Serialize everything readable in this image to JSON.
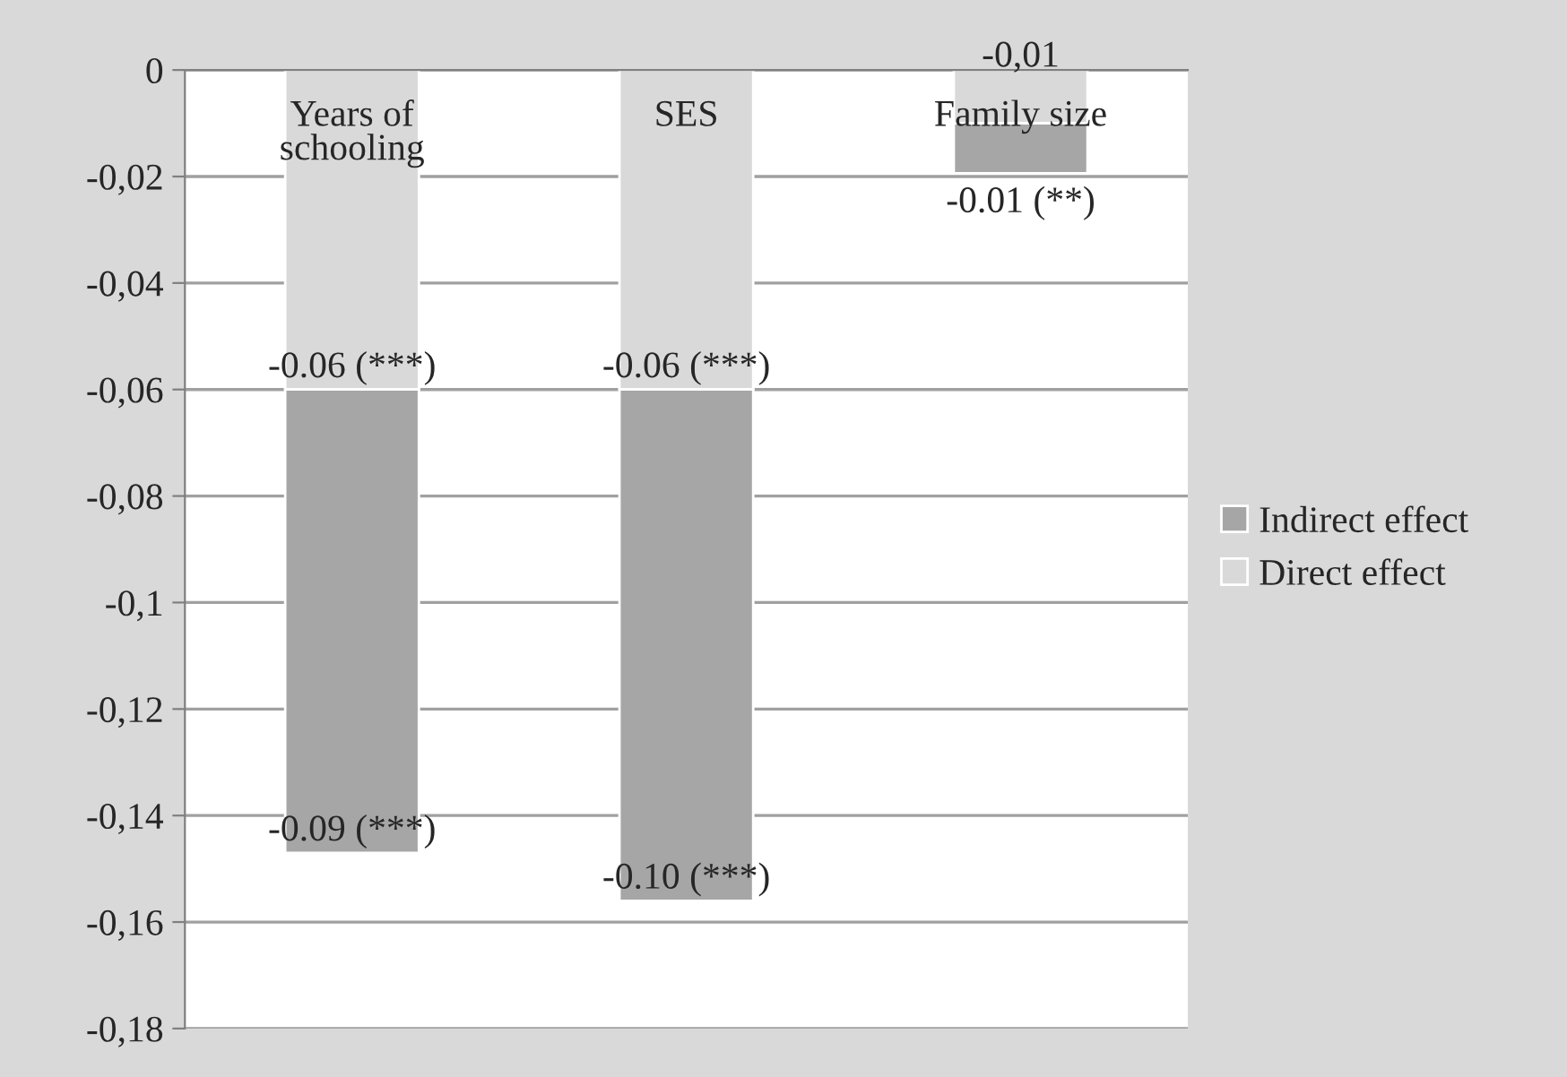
{
  "chart_data": {
    "type": "bar",
    "stacked": true,
    "categories": [
      "Years of\nschooling",
      "SES",
      "Family size"
    ],
    "series": [
      {
        "name": "Direct effect",
        "color": "#d9d9d9",
        "values": [
          -0.06,
          -0.06,
          -0.01
        ],
        "value_labels": [
          "-0.06 (***)",
          "-0.06 (***)",
          "-0,01"
        ]
      },
      {
        "name": "Indirect effect",
        "color": "#a6a6a6",
        "values": [
          -0.087,
          -0.096,
          -0.0094
        ],
        "value_labels": [
          "-0.09 (***)",
          "-0.10 (***)",
          "-0.01 (**)"
        ]
      }
    ],
    "ylim": [
      -0.18,
      0
    ],
    "yticks": [
      0,
      {
        "value": -0.02,
        "label": "-0,02"
      },
      {
        "value": -0.04,
        "label": "-0,04"
      },
      {
        "value": -0.06,
        "label": "-0,06"
      },
      {
        "value": -0.08,
        "label": "-0,08"
      },
      {
        "value": -0.1,
        "label": "-0,1"
      },
      {
        "value": -0.12,
        "label": "-0,12"
      },
      {
        "value": -0.14,
        "label": "-0,14"
      },
      {
        "value": -0.16,
        "label": "-0,16"
      },
      {
        "value": -0.18,
        "label": "-0,18"
      }
    ],
    "grid": "y",
    "legend": "right"
  }
}
